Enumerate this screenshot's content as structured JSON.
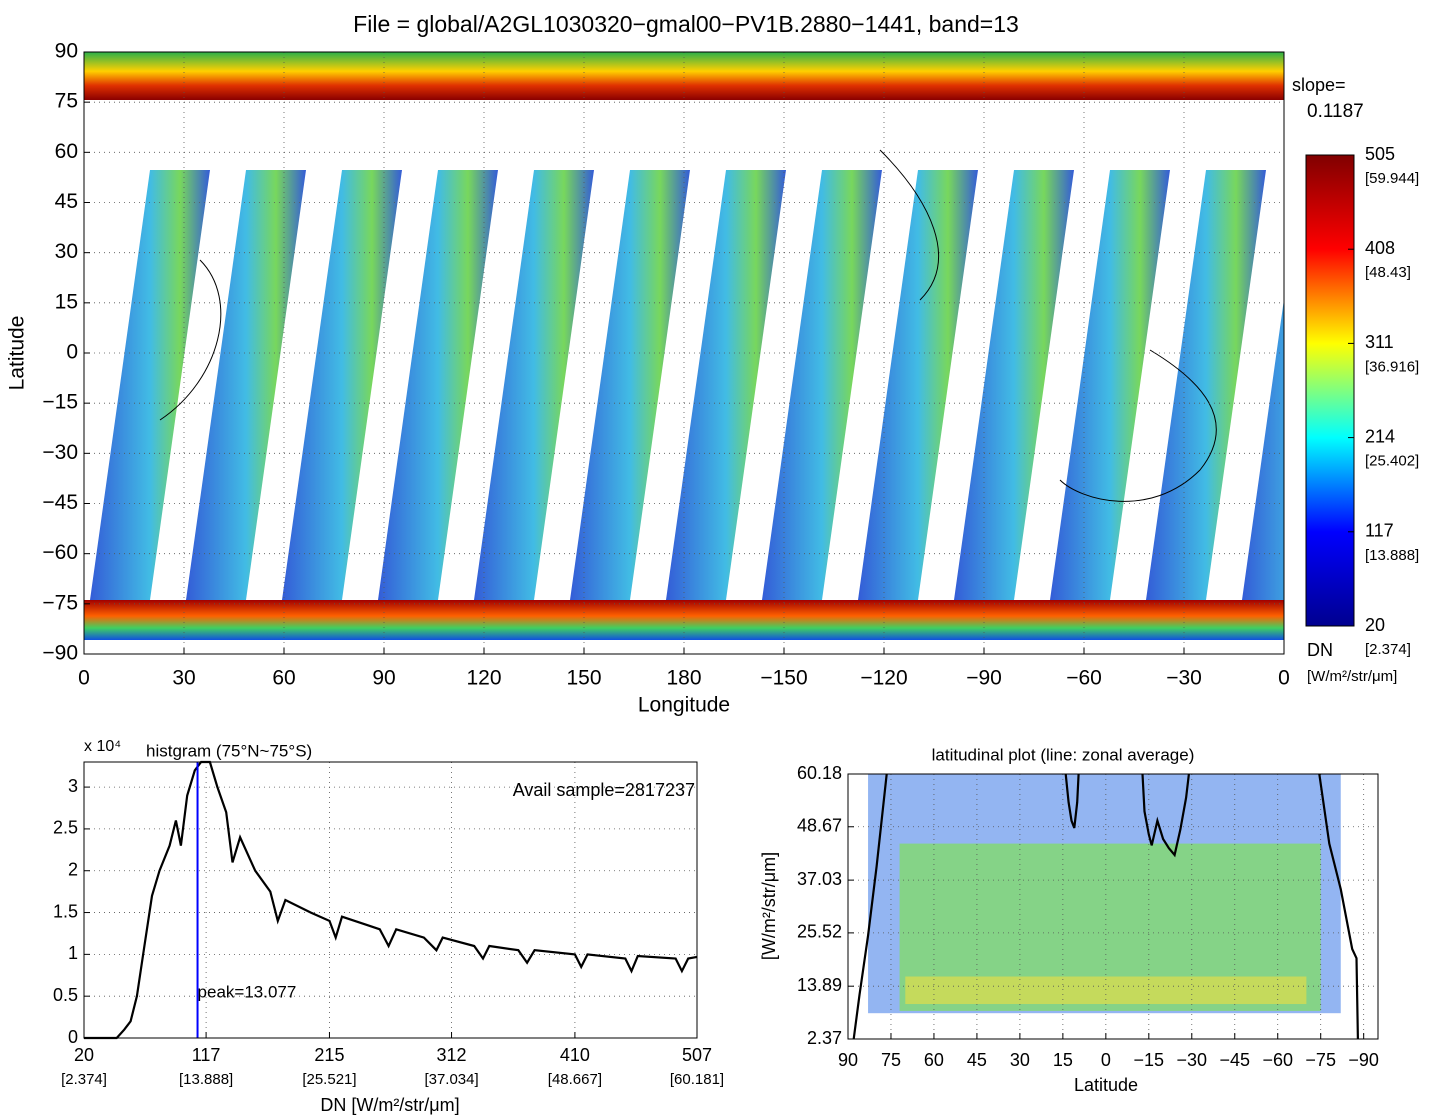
{
  "chart_data": [
    {
      "type": "heatmap",
      "title": "File = global/A2GL1030320−gmal00−PV1B.2880−1441, band=13",
      "xlabel": "Longitude",
      "ylabel": "Latitude",
      "xlim": [
        0,
        360
      ],
      "xticks": [
        0,
        30,
        60,
        90,
        120,
        150,
        180,
        {
          "value": 210,
          "label": "−150"
        },
        {
          "value": 240,
          "label": "−120"
        },
        {
          "value": 270,
          "label": "−90"
        },
        {
          "value": 300,
          "label": "−60"
        },
        {
          "value": 330,
          "label": "−30"
        },
        {
          "value": 360,
          "label": "0"
        }
      ],
      "ylim": [
        -90,
        90
      ],
      "yticks": [
        {
          "value": -90,
          "label": "−90"
        },
        {
          "value": -75,
          "label": "−75"
        },
        {
          "value": -60,
          "label": "−60"
        },
        {
          "value": -45,
          "label": "−45"
        },
        {
          "value": -30,
          "label": "−30"
        },
        {
          "value": -15,
          "label": "−15"
        },
        0,
        15,
        30,
        45,
        60,
        75,
        90
      ],
      "grid": true,
      "colormap": "jet",
      "clim": [
        20,
        505
      ],
      "cticks": [
        20,
        117,
        214,
        311,
        408,
        505
      ],
      "ctick_sublabels": [
        "[2.374]",
        "[13.888]",
        "[25.402]",
        "[36.916]",
        "[48.43]",
        "[59.944]"
      ],
      "slope_label": "slope=",
      "slope": 0.1187,
      "colorbar_label": "DN",
      "colorbar_unit": "[W/m²/str/μm]"
    },
    {
      "type": "line",
      "title": "histgram (75°N~75°S)",
      "exponent_label": "x 10⁴",
      "annotation": "Avail sample=2817237",
      "xlabel": "DN [W/m²/str/μm]",
      "xlim": [
        20,
        507
      ],
      "xticks": [
        20,
        117,
        215,
        312,
        410,
        507
      ],
      "xtick_sublabels": [
        "[2.374]",
        "[13.888]",
        "[25.521]",
        "[37.034]",
        "[48.667]",
        "[60.181]"
      ],
      "ylim": [
        0,
        3.3
      ],
      "yticks": [
        0,
        0.5,
        1,
        1.5,
        2,
        2.5,
        3
      ],
      "grid": true,
      "color": "#000000",
      "x": [
        20,
        46,
        52,
        57,
        62,
        68,
        74,
        80,
        88,
        93,
        97,
        102,
        108,
        113,
        120,
        126,
        133,
        138,
        144,
        156,
        168,
        174,
        180,
        200,
        215,
        220,
        225,
        245,
        255,
        262,
        268,
        290,
        300,
        305,
        330,
        337,
        342,
        365,
        372,
        378,
        410,
        415,
        420,
        450,
        455,
        460,
        490,
        495,
        500,
        507
      ],
      "values": [
        0,
        0,
        0.1,
        0.2,
        0.5,
        1.1,
        1.7,
        2.0,
        2.3,
        2.6,
        2.3,
        2.9,
        3.2,
        3.3,
        3.3,
        3.0,
        2.7,
        2.1,
        2.4,
        2.0,
        1.75,
        1.4,
        1.65,
        1.5,
        1.4,
        1.2,
        1.45,
        1.35,
        1.3,
        1.1,
        1.3,
        1.2,
        1.05,
        1.2,
        1.1,
        0.95,
        1.1,
        1.05,
        0.9,
        1.05,
        1.0,
        0.85,
        1.0,
        0.95,
        0.8,
        0.98,
        0.95,
        0.8,
        0.95,
        0.97
      ],
      "peak": {
        "x": 110.2,
        "label": "peak=13.077",
        "color": "#0000ff"
      }
    },
    {
      "type": "line",
      "title": "latitudinal plot (line: zonal average)",
      "xlabel": "Latitude",
      "ylabel": "[W/m²/str/μm]",
      "xlim": [
        90,
        -95
      ],
      "xticks": [
        90,
        75,
        60,
        45,
        30,
        15,
        0,
        {
          "value": -15,
          "label": "−15"
        },
        {
          "value": -30,
          "label": "−30"
        },
        {
          "value": -45,
          "label": "−45"
        },
        {
          "value": -60,
          "label": "−60"
        },
        {
          "value": -75,
          "label": "−75"
        },
        {
          "value": -90,
          "label": "−90"
        }
      ],
      "ylim": [
        2.37,
        60.18
      ],
      "yticks": [
        2.37,
        13.89,
        25.52,
        37.03,
        48.67,
        60.18
      ],
      "grid": true,
      "color": "#000000",
      "x": [
        88,
        86,
        83,
        80,
        76.5,
        45,
        14,
        13,
        12,
        11,
        10,
        9.5,
        0,
        -12.8,
        -13.5,
        -15,
        -16,
        -18,
        -20,
        -22,
        -24,
        -26,
        -28,
        -29,
        -50,
        -74.5,
        -78,
        -82,
        -86,
        -87.5,
        -88
      ],
      "values": [
        2.37,
        12,
        25,
        40,
        60.18,
        null,
        60.18,
        54,
        50,
        48.4,
        54,
        60.18,
        null,
        60.18,
        52,
        47,
        44.6,
        50,
        46,
        44,
        42.5,
        48,
        55,
        60.18,
        null,
        60.18,
        45,
        35,
        22,
        20,
        2.37
      ]
    }
  ]
}
